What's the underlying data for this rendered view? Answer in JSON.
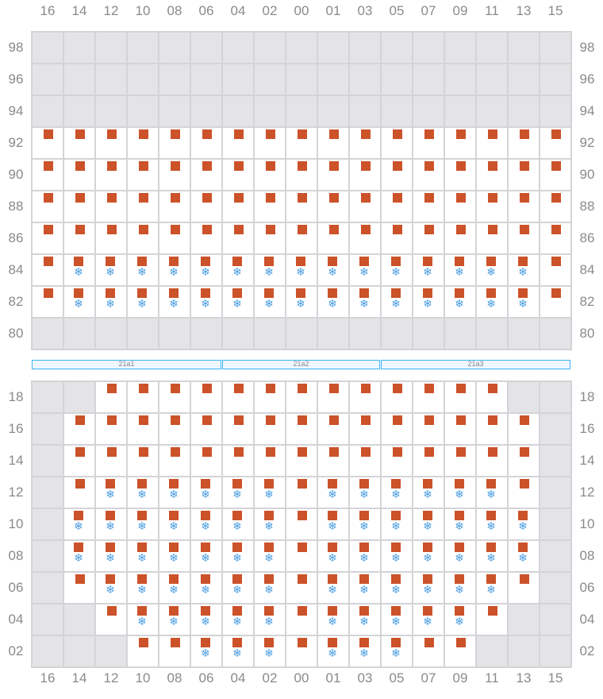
{
  "columns": [
    "16",
    "14",
    "12",
    "10",
    "08",
    "06",
    "04",
    "02",
    "00",
    "01",
    "03",
    "05",
    "07",
    "09",
    "11",
    "13",
    "15"
  ],
  "legend_codes": {
    "g": "unavailable",
    "w": "empty",
    "r": "occupied",
    "s": "occupied-refrigerated"
  },
  "colors": {
    "occupied": "#cc5229",
    "refrigerated": "#4a9de0",
    "unavailable": "#e4e4e7",
    "zone_border": "#3bb4f0"
  },
  "top_section": {
    "rows": [
      {
        "label": "98",
        "cells": "ggggggggggggggggg"
      },
      {
        "label": "96",
        "cells": "ggggggggggggggggg"
      },
      {
        "label": "94",
        "cells": "ggggggggggggggggg"
      },
      {
        "label": "92",
        "cells": "rrrrrrrrrrrrrrrrr"
      },
      {
        "label": "90",
        "cells": "rrrrrrrrrrrrrrrrr"
      },
      {
        "label": "88",
        "cells": "rrrrrrrrrrrrrrrrr"
      },
      {
        "label": "86",
        "cells": "rrrrrrrrrrrrrrrrr"
      },
      {
        "label": "84",
        "cells": "rsssssssssssssssr"
      },
      {
        "label": "82",
        "cells": "rsssssssssssssssr"
      },
      {
        "label": "80",
        "cells": "ggggggggggggggggg"
      }
    ]
  },
  "zones": [
    {
      "label": "21a1",
      "from": 0,
      "span": 6
    },
    {
      "label": "21a2",
      "from": 6,
      "span": 5
    },
    {
      "label": "21a3",
      "from": 11,
      "span": 6
    }
  ],
  "bottom_section": {
    "rows": [
      {
        "label": "18",
        "cells": "ggrrrrrrrrrrrrrgg"
      },
      {
        "label": "16",
        "cells": "grrrrrrrrrrrrrrrg"
      },
      {
        "label": "14",
        "cells": "grrrrrrrrrrrrrrrg"
      },
      {
        "label": "12",
        "cells": "grssssssrssssssrg"
      },
      {
        "label": "10",
        "cells": "gsssssssrsssssssg"
      },
      {
        "label": "08",
        "cells": "gsssssssrsssssssg"
      },
      {
        "label": "06",
        "cells": "grssssssrssssssrg"
      },
      {
        "label": "04",
        "cells": "ggrsssssrsssssrgg"
      },
      {
        "label": "02",
        "cells": "gggrrsssrsssrrggg"
      }
    ]
  },
  "icons": {
    "occupied": "square",
    "refrigerated": "snowflake-icon",
    "snow_glyph": "❄"
  }
}
